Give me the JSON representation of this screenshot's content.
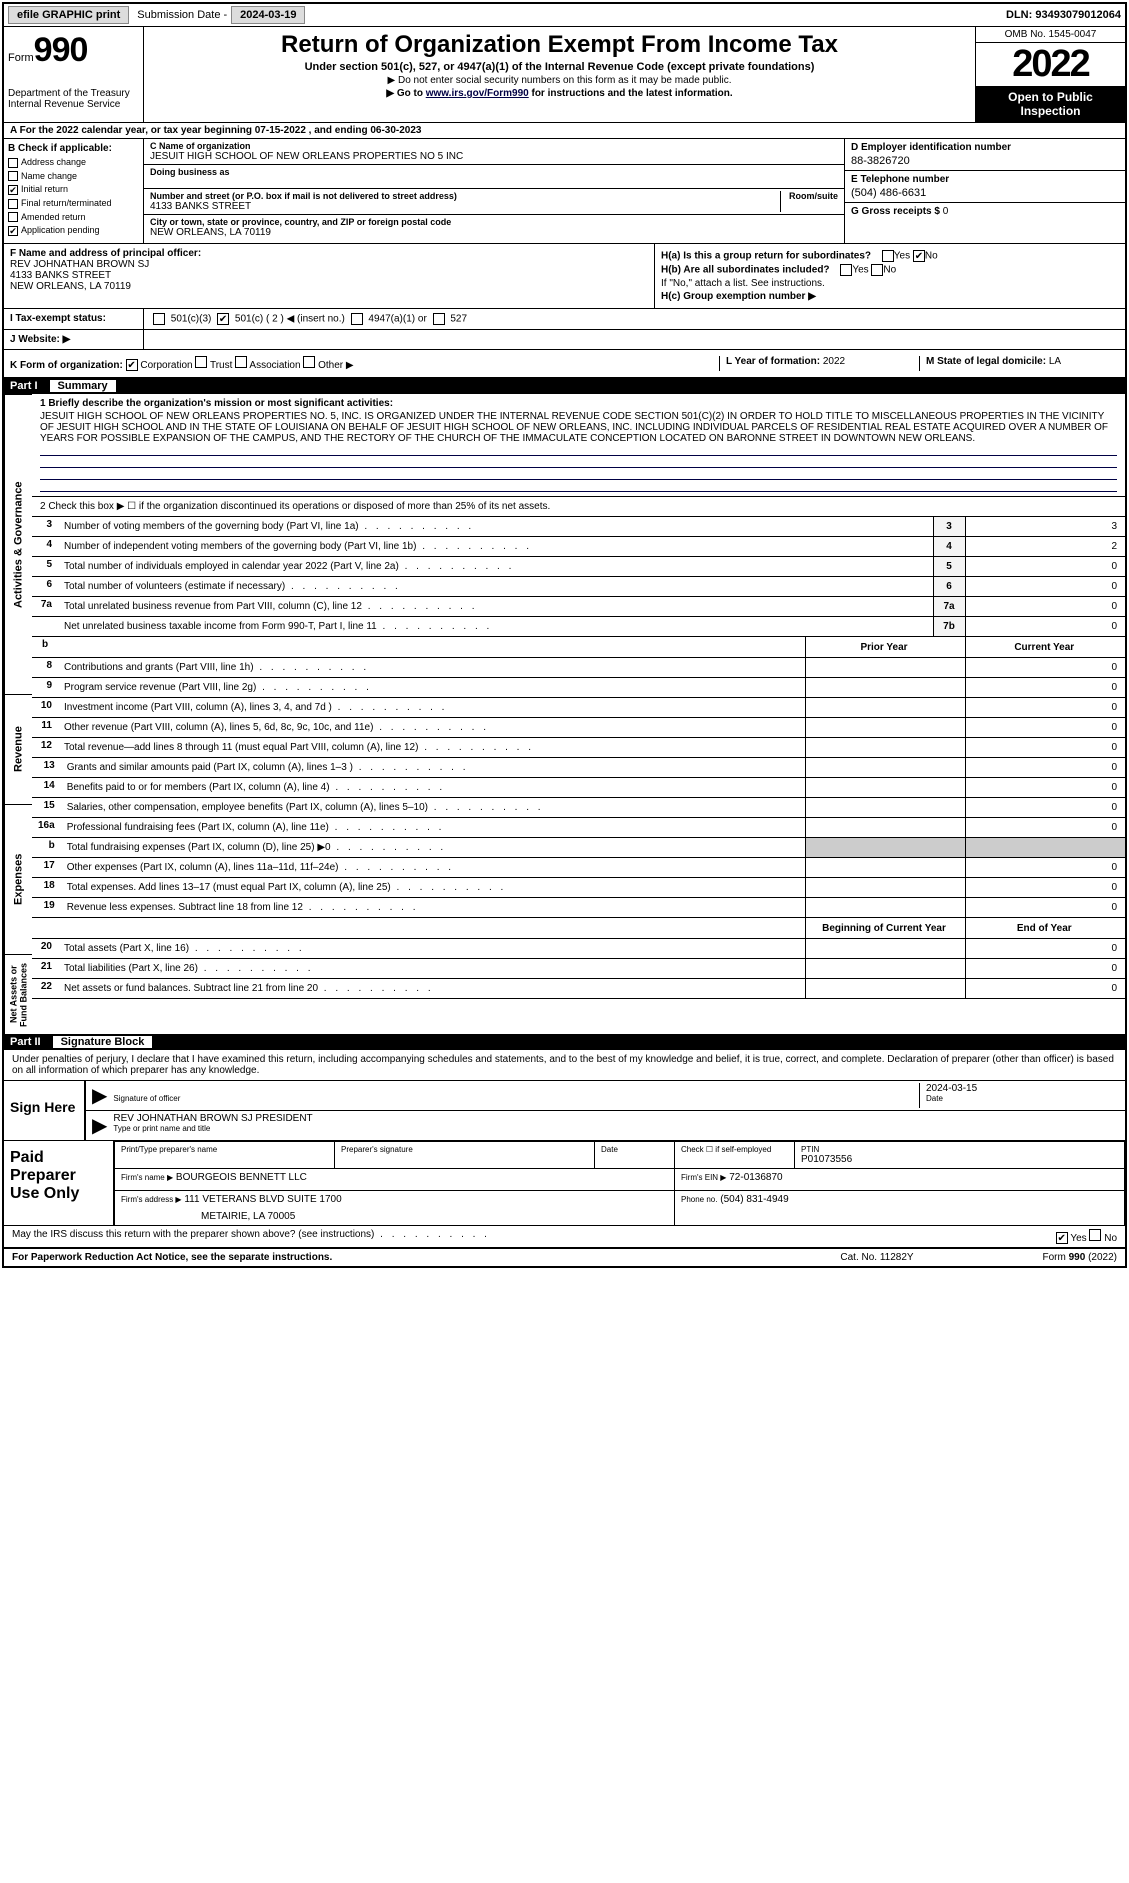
{
  "topbar": {
    "efile": "efile GRAPHIC print",
    "sub_label": "Submission Date -",
    "sub_date": "2024-03-19",
    "dln": "DLN: 93493079012064"
  },
  "header": {
    "form_word": "Form",
    "form_num": "990",
    "dept": "Department of the Treasury\nInternal Revenue Service",
    "title": "Return of Organization Exempt From Income Tax",
    "sub": "Under section 501(c), 527, or 4947(a)(1) of the Internal Revenue Code (except private foundations)",
    "note1": "▶ Do not enter social security numbers on this form as it may be made public.",
    "note2_pre": "▶ Go to ",
    "note2_link": "www.irs.gov/Form990",
    "note2_post": " for instructions and the latest information.",
    "omb": "OMB No. 1545-0047",
    "year": "2022",
    "open": "Open to Public Inspection"
  },
  "period": {
    "text": "A For the 2022 calendar year, or tax year beginning ",
    "begin": "07-15-2022",
    "mid": " , and ending ",
    "end": "06-30-2023"
  },
  "boxB": {
    "hdr": "B Check if applicable:",
    "items": [
      {
        "label": "Address change",
        "checked": false
      },
      {
        "label": "Name change",
        "checked": false
      },
      {
        "label": "Initial return",
        "checked": true
      },
      {
        "label": "Final return/terminated",
        "checked": false
      },
      {
        "label": "Amended return",
        "checked": false
      },
      {
        "label": "Application pending",
        "checked": true
      }
    ]
  },
  "boxC": {
    "name_lbl": "C Name of organization",
    "name": "JESUIT HIGH SCHOOL OF NEW ORLEANS PROPERTIES NO 5 INC",
    "dba_lbl": "Doing business as",
    "dba": "",
    "addr_lbl": "Number and street (or P.O. box if mail is not delivered to street address)",
    "room_lbl": "Room/suite",
    "addr": "4133 BANKS STREET",
    "city_lbl": "City or town, state or province, country, and ZIP or foreign postal code",
    "city": "NEW ORLEANS, LA  70119"
  },
  "boxD": {
    "lbl": "D Employer identification number",
    "val": "88-3826720"
  },
  "boxE": {
    "lbl": "E Telephone number",
    "val": "(504) 486-6631"
  },
  "boxG": {
    "lbl": "G Gross receipts $",
    "val": "0"
  },
  "boxF": {
    "lbl": "F  Name and address of principal officer:",
    "name": "REV JOHNATHAN BROWN SJ",
    "addr": "4133 BANKS STREET",
    "city": "NEW ORLEANS, LA  70119"
  },
  "boxH": {
    "a_lbl": "H(a)  Is this a group return for subordinates?",
    "a_yes": false,
    "a_no": true,
    "b_lbl": "H(b)  Are all subordinates included?",
    "note": "If \"No,\" attach a list. See instructions.",
    "c_lbl": "H(c)  Group exemption number ▶"
  },
  "boxI": {
    "lbl": "I    Tax-exempt status:",
    "c3": false,
    "c_other": true,
    "c_num": "2",
    "c_txt": "501(c) ( 2 ) ◀ (insert no.)",
    "a1": "4947(a)(1) or",
    "t527": "527"
  },
  "boxJ": {
    "lbl": "J   Website: ▶",
    "val": ""
  },
  "boxK": {
    "lbl": "K Form of organization:",
    "corp": true,
    "trust": false,
    "assoc": false,
    "other": false
  },
  "boxL": {
    "lbl": "L Year of formation:",
    "val": "2022"
  },
  "boxM": {
    "lbl": "M State of legal domicile:",
    "val": "LA"
  },
  "part1": {
    "num": "Part I",
    "title": "Summary",
    "line1_lbl": "1   Briefly describe the organization's mission or most significant activities:",
    "mission": "JESUIT HIGH SCHOOL OF NEW ORLEANS PROPERTIES NO. 5, INC. IS ORGANIZED UNDER THE INTERNAL REVENUE CODE SECTION 501(C)(2) IN ORDER TO HOLD TITLE TO MISCELLANEOUS PROPERTIES IN THE VICINITY OF JESUIT HIGH SCHOOL AND IN THE STATE OF LOUISIANA ON BEHALF OF JESUIT HIGH SCHOOL OF NEW ORLEANS, INC. INCLUDING INDIVIDUAL PARCELS OF RESIDENTIAL REAL ESTATE ACQUIRED OVER A NUMBER OF YEARS FOR POSSIBLE EXPANSION OF THE CAMPUS, AND THE RECTORY OF THE CHURCH OF THE IMMACULATE CONCEPTION LOCATED ON BARONNE STREET IN DOWNTOWN NEW ORLEANS.",
    "line2": "2   Check this box ▶ ☐ if the organization discontinued its operations or disposed of more than 25% of its net assets.",
    "vtabs": {
      "ag": "Activities & Governance",
      "rev": "Revenue",
      "exp": "Expenses",
      "na": "Net Assets or Fund Balances"
    },
    "rows_single": [
      {
        "n": "3",
        "d": "Number of voting members of the governing body (Part VI, line 1a)",
        "box": "3",
        "v": "3"
      },
      {
        "n": "4",
        "d": "Number of independent voting members of the governing body (Part VI, line 1b)",
        "box": "4",
        "v": "2"
      },
      {
        "n": "5",
        "d": "Total number of individuals employed in calendar year 2022 (Part V, line 2a)",
        "box": "5",
        "v": "0"
      },
      {
        "n": "6",
        "d": "Total number of volunteers (estimate if necessary)",
        "box": "6",
        "v": "0"
      },
      {
        "n": "7a",
        "d": "Total unrelated business revenue from Part VIII, column (C), line 12",
        "box": "7a",
        "v": "0"
      },
      {
        "n": "",
        "d": "Net unrelated business taxable income from Form 990-T, Part I, line 11",
        "box": "7b",
        "v": "0"
      }
    ],
    "col_hdr": {
      "prior": "Prior Year",
      "curr": "Current Year"
    },
    "rows_rev": [
      {
        "n": "8",
        "d": "Contributions and grants (Part VIII, line 1h)",
        "p": "",
        "c": "0"
      },
      {
        "n": "9",
        "d": "Program service revenue (Part VIII, line 2g)",
        "p": "",
        "c": "0"
      },
      {
        "n": "10",
        "d": "Investment income (Part VIII, column (A), lines 3, 4, and 7d )",
        "p": "",
        "c": "0"
      },
      {
        "n": "11",
        "d": "Other revenue (Part VIII, column (A), lines 5, 6d, 8c, 9c, 10c, and 11e)",
        "p": "",
        "c": "0"
      },
      {
        "n": "12",
        "d": "Total revenue—add lines 8 through 11 (must equal Part VIII, column (A), line 12)",
        "p": "",
        "c": "0"
      }
    ],
    "rows_exp": [
      {
        "n": "13",
        "d": "Grants and similar amounts paid (Part IX, column (A), lines 1–3 )",
        "p": "",
        "c": "0"
      },
      {
        "n": "14",
        "d": "Benefits paid to or for members (Part IX, column (A), line 4)",
        "p": "",
        "c": "0"
      },
      {
        "n": "15",
        "d": "Salaries, other compensation, employee benefits (Part IX, column (A), lines 5–10)",
        "p": "",
        "c": "0"
      },
      {
        "n": "16a",
        "d": "Professional fundraising fees (Part IX, column (A), line 11e)",
        "p": "",
        "c": "0"
      },
      {
        "n": "b",
        "d": "Total fundraising expenses (Part IX, column (D), line 25) ▶0",
        "p": "SHADE",
        "c": "SHADE"
      },
      {
        "n": "17",
        "d": "Other expenses (Part IX, column (A), lines 11a–11d, 11f–24e)",
        "p": "",
        "c": "0"
      },
      {
        "n": "18",
        "d": "Total expenses. Add lines 13–17 (must equal Part IX, column (A), line 25)",
        "p": "",
        "c": "0"
      },
      {
        "n": "19",
        "d": "Revenue less expenses. Subtract line 18 from line 12",
        "p": "",
        "c": "0"
      }
    ],
    "col_hdr2": {
      "prior": "Beginning of Current Year",
      "curr": "End of Year"
    },
    "rows_na": [
      {
        "n": "20",
        "d": "Total assets (Part X, line 16)",
        "p": "",
        "c": "0"
      },
      {
        "n": "21",
        "d": "Total liabilities (Part X, line 26)",
        "p": "",
        "c": "0"
      },
      {
        "n": "22",
        "d": "Net assets or fund balances. Subtract line 21 from line 20",
        "p": "",
        "c": "0"
      }
    ]
  },
  "part2": {
    "num": "Part II",
    "title": "Signature Block",
    "decl": "Under penalties of perjury, I declare that I have examined this return, including accompanying schedules and statements, and to the best of my knowledge and belief, it is true, correct, and complete. Declaration of preparer (other than officer) is based on all information of which preparer has any knowledge.",
    "sign_here": "Sign Here",
    "sig_lbl": "Signature of officer",
    "sig_date": "2024-03-15",
    "sig_date_lbl": "Date",
    "name": "REV JOHNATHAN BROWN SJ PRESIDENT",
    "name_lbl": "Type or print name and title",
    "paid": "Paid Preparer Use Only",
    "p_name_lbl": "Print/Type preparer's name",
    "p_sig_lbl": "Preparer's signature",
    "p_date_lbl": "Date",
    "p_self_lbl": "Check ☐ if self-employed",
    "ptin_lbl": "PTIN",
    "ptin": "P01073556",
    "firm_lbl": "Firm's name    ▶",
    "firm": "BOURGEOIS BENNETT LLC",
    "ein_lbl": "Firm's EIN ▶",
    "ein": "72-0136870",
    "addr_lbl": "Firm's address ▶",
    "addr": "111 VETERANS BLVD SUITE 1700",
    "addr2": "METAIRIE, LA  70005",
    "phone_lbl": "Phone no.",
    "phone": "(504) 831-4949",
    "discuss": "May the IRS discuss this return with the preparer shown above? (see instructions)",
    "discuss_yes": true
  },
  "footer": {
    "pra": "For Paperwork Reduction Act Notice, see the separate instructions.",
    "cat": "Cat. No. 11282Y",
    "form": "Form 990 (2022)"
  }
}
